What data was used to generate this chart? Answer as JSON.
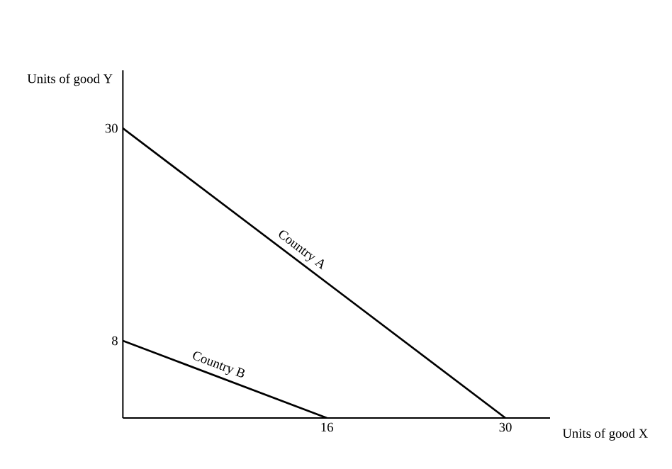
{
  "chart_data": {
    "type": "line",
    "xlabel": "Units of good X",
    "ylabel": "Units of good Y",
    "xlim": [
      0,
      33.5
    ],
    "ylim": [
      0,
      36
    ],
    "xticks": [
      16,
      30
    ],
    "yticks": [
      8,
      30
    ],
    "marker": "none",
    "line_style": "solid",
    "series": [
      {
        "name": "Country A",
        "color": "#000000",
        "x": [
          0,
          30
        ],
        "values": [
          30,
          0
        ]
      },
      {
        "name": "Country B",
        "color": "#000000",
        "x": [
          0,
          16
        ],
        "values": [
          8,
          0
        ]
      }
    ]
  }
}
